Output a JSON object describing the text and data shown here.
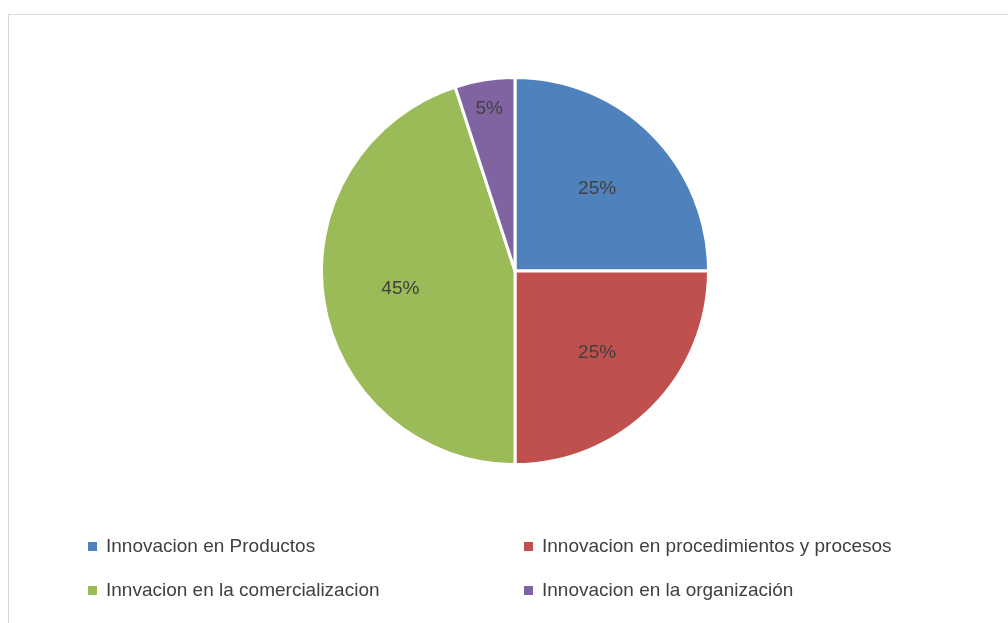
{
  "chart_data": {
    "type": "pie",
    "categories": [
      "Innovacion en Productos",
      "Innovacion en procedimientos  y procesos",
      "Innvacion en la comercializacion",
      "Innovacion en la organización"
    ],
    "values": [
      25,
      25,
      45,
      5
    ],
    "colors": [
      "#4f81bd",
      "#c0504d",
      "#9bbb59",
      "#8064a2"
    ],
    "value_labels": [
      "25%",
      "25%",
      "45%",
      "5%"
    ],
    "legend": "bottom"
  }
}
